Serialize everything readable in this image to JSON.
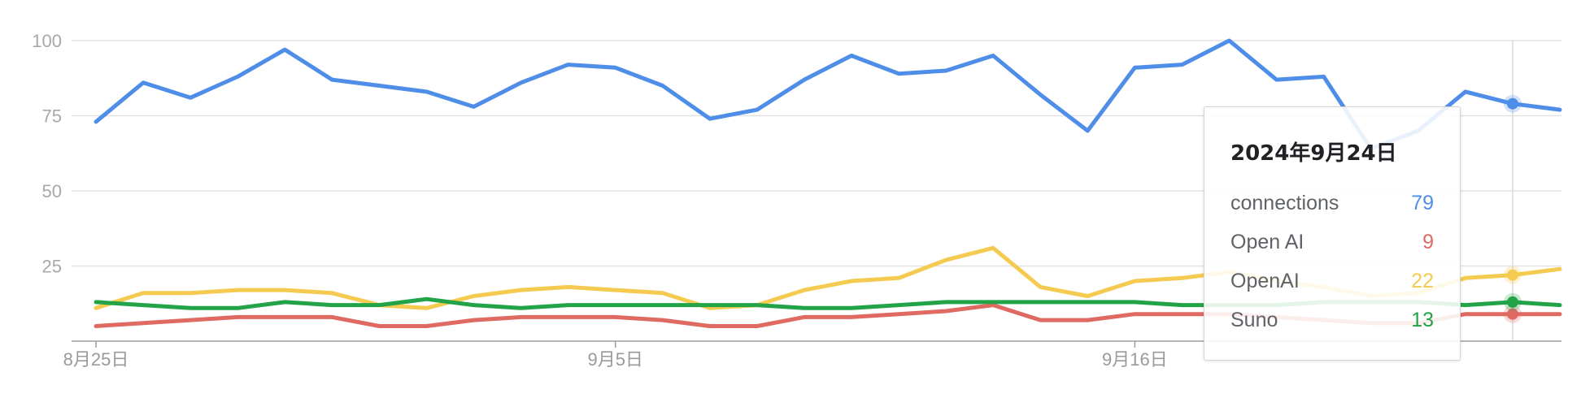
{
  "chart_data": {
    "type": "line",
    "x_tick_labels": [
      "8月25日",
      "9月5日",
      "9月16日"
    ],
    "x_tick_positions": [
      0,
      11,
      22
    ],
    "y_tick_labels": [
      "100",
      "75",
      "50",
      "25"
    ],
    "y_tick_values": [
      100,
      75,
      50,
      25
    ],
    "ylim": [
      0,
      100
    ],
    "grid": true,
    "series": [
      {
        "name": "connections",
        "color": "#4f8ee8",
        "values": [
          73,
          86,
          81,
          88,
          97,
          87,
          85,
          83,
          78,
          86,
          92,
          91,
          85,
          74,
          77,
          87,
          95,
          89,
          90,
          95,
          82,
          70,
          91,
          92,
          100,
          87,
          88,
          64,
          70,
          83,
          79,
          77
        ]
      },
      {
        "name": "Open AI",
        "color": "#df6a62",
        "values": [
          5,
          6,
          7,
          8,
          8,
          8,
          5,
          5,
          7,
          8,
          8,
          8,
          7,
          5,
          5,
          8,
          8,
          9,
          10,
          12,
          7,
          7,
          9,
          9,
          9,
          8,
          7,
          6,
          6,
          9,
          9,
          9
        ]
      },
      {
        "name": "OpenAI",
        "color": "#f4cb50",
        "values": [
          11,
          16,
          16,
          17,
          17,
          16,
          12,
          11,
          15,
          17,
          18,
          17,
          16,
          11,
          12,
          17,
          20,
          21,
          27,
          31,
          18,
          15,
          20,
          21,
          23,
          20,
          18,
          15,
          16,
          21,
          22,
          24
        ]
      },
      {
        "name": "Suno",
        "color": "#23a347",
        "values": [
          13,
          12,
          11,
          11,
          13,
          12,
          12,
          14,
          12,
          11,
          12,
          12,
          12,
          12,
          12,
          11,
          11,
          12,
          13,
          13,
          13,
          13,
          13,
          12,
          12,
          12,
          13,
          13,
          13,
          12,
          13,
          12
        ]
      }
    ],
    "highlight_index": 30,
    "tooltip": {
      "date": "2024年9月24日",
      "rows": [
        {
          "name": "connections",
          "value": "79",
          "color": "#4f8ee8"
        },
        {
          "name": "Open AI",
          "value": "9",
          "color": "#df6a62"
        },
        {
          "name": "OpenAI",
          "value": "22",
          "color": "#f4cb50"
        },
        {
          "name": "Suno",
          "value": "13",
          "color": "#23a347"
        }
      ]
    },
    "title": "",
    "xlabel": "",
    "ylabel": ""
  }
}
